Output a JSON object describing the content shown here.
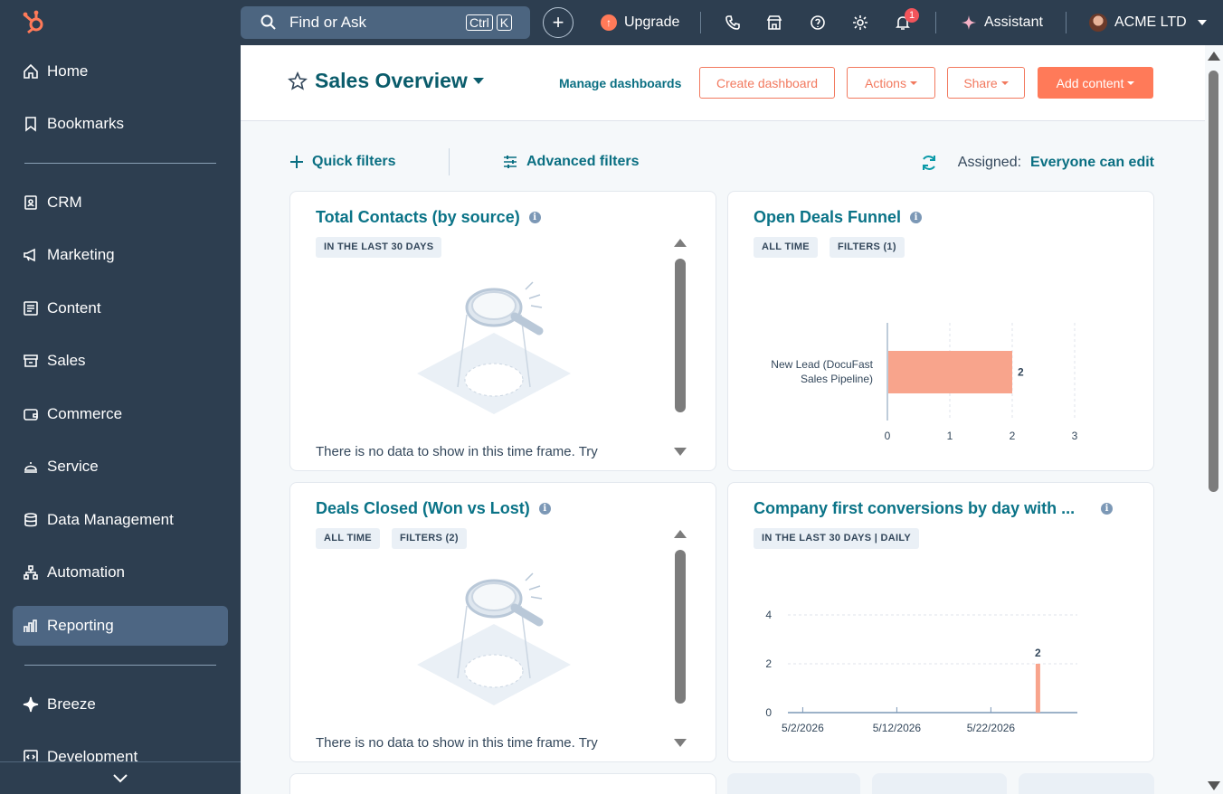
{
  "sidebar": {
    "items": [
      {
        "label": "Home",
        "icon": "home-icon"
      },
      {
        "label": "Bookmarks",
        "icon": "bookmark-icon"
      },
      {
        "label": "CRM",
        "icon": "contacts-icon"
      },
      {
        "label": "Marketing",
        "icon": "megaphone-icon"
      },
      {
        "label": "Content",
        "icon": "content-icon"
      },
      {
        "label": "Sales",
        "icon": "sales-icon"
      },
      {
        "label": "Commerce",
        "icon": "wallet-icon"
      },
      {
        "label": "Service",
        "icon": "service-bell-icon"
      },
      {
        "label": "Data Management",
        "icon": "database-icon"
      },
      {
        "label": "Automation",
        "icon": "workflow-icon"
      },
      {
        "label": "Reporting",
        "icon": "bar-chart-icon",
        "active": true
      },
      {
        "label": "Breeze",
        "icon": "sparkle-icon"
      },
      {
        "label": "Development",
        "icon": "code-icon"
      }
    ]
  },
  "topbar": {
    "search_placeholder": "Find or Ask",
    "shortcut_ctrl": "Ctrl",
    "shortcut_key": "K",
    "upgrade_label": "Upgrade",
    "notification_count": "1",
    "assistant_label": "Assistant",
    "account_name": "ACME LTD"
  },
  "header": {
    "title": "Sales Overview",
    "manage_label": "Manage dashboards",
    "create_label": "Create dashboard",
    "actions_label": "Actions",
    "share_label": "Share",
    "add_content_label": "Add content"
  },
  "filters": {
    "quick_label": "Quick filters",
    "advanced_label": "Advanced filters",
    "assigned_label": "Assigned:",
    "assigned_value": "Everyone can edit"
  },
  "cards": {
    "total_contacts": {
      "title": "Total Contacts (by source)",
      "tags": [
        "IN THE LAST 30 DAYS"
      ],
      "empty_text": "There is no data to show in this time frame. Try"
    },
    "open_deals": {
      "title": "Open Deals Funnel",
      "tags": [
        "ALL TIME",
        "FILTERS (1)"
      ]
    },
    "deals_closed": {
      "title": "Deals Closed (Won vs Lost)",
      "tags": [
        "ALL TIME",
        "FILTERS (2)"
      ],
      "empty_text": "There is no data to show in this time frame. Try"
    },
    "company_conversions": {
      "title": "Company first conversions by day with ...",
      "tags": [
        "IN THE LAST 30 DAYS | DAILY"
      ]
    }
  },
  "colors": {
    "sidebar_bg": "#2d3e50",
    "accent": "#ff7a59",
    "teal_link": "#0a7387",
    "bar": "#f8a48c"
  },
  "chart_data": [
    {
      "type": "bar",
      "orientation": "horizontal",
      "categories": [
        "New Lead (DocuFast Sales Pipeline)"
      ],
      "category_lines": [
        "New Lead (DocuFast",
        "Sales Pipeline)"
      ],
      "values": [
        2
      ],
      "data_labels": [
        "2"
      ],
      "xlim": [
        0,
        3
      ],
      "xticks": [
        "0",
        "1",
        "2",
        "3"
      ],
      "grid": true
    },
    {
      "type": "bar",
      "x_ticks": [
        "5/2/2026",
        "5/12/2026",
        "5/22/2026"
      ],
      "points": [
        {
          "x": "5/27/2026",
          "y": 2
        }
      ],
      "data_labels": [
        "2"
      ],
      "ylim": [
        0,
        4
      ],
      "yticks": [
        "0",
        "2",
        "4"
      ],
      "grid": true
    }
  ]
}
